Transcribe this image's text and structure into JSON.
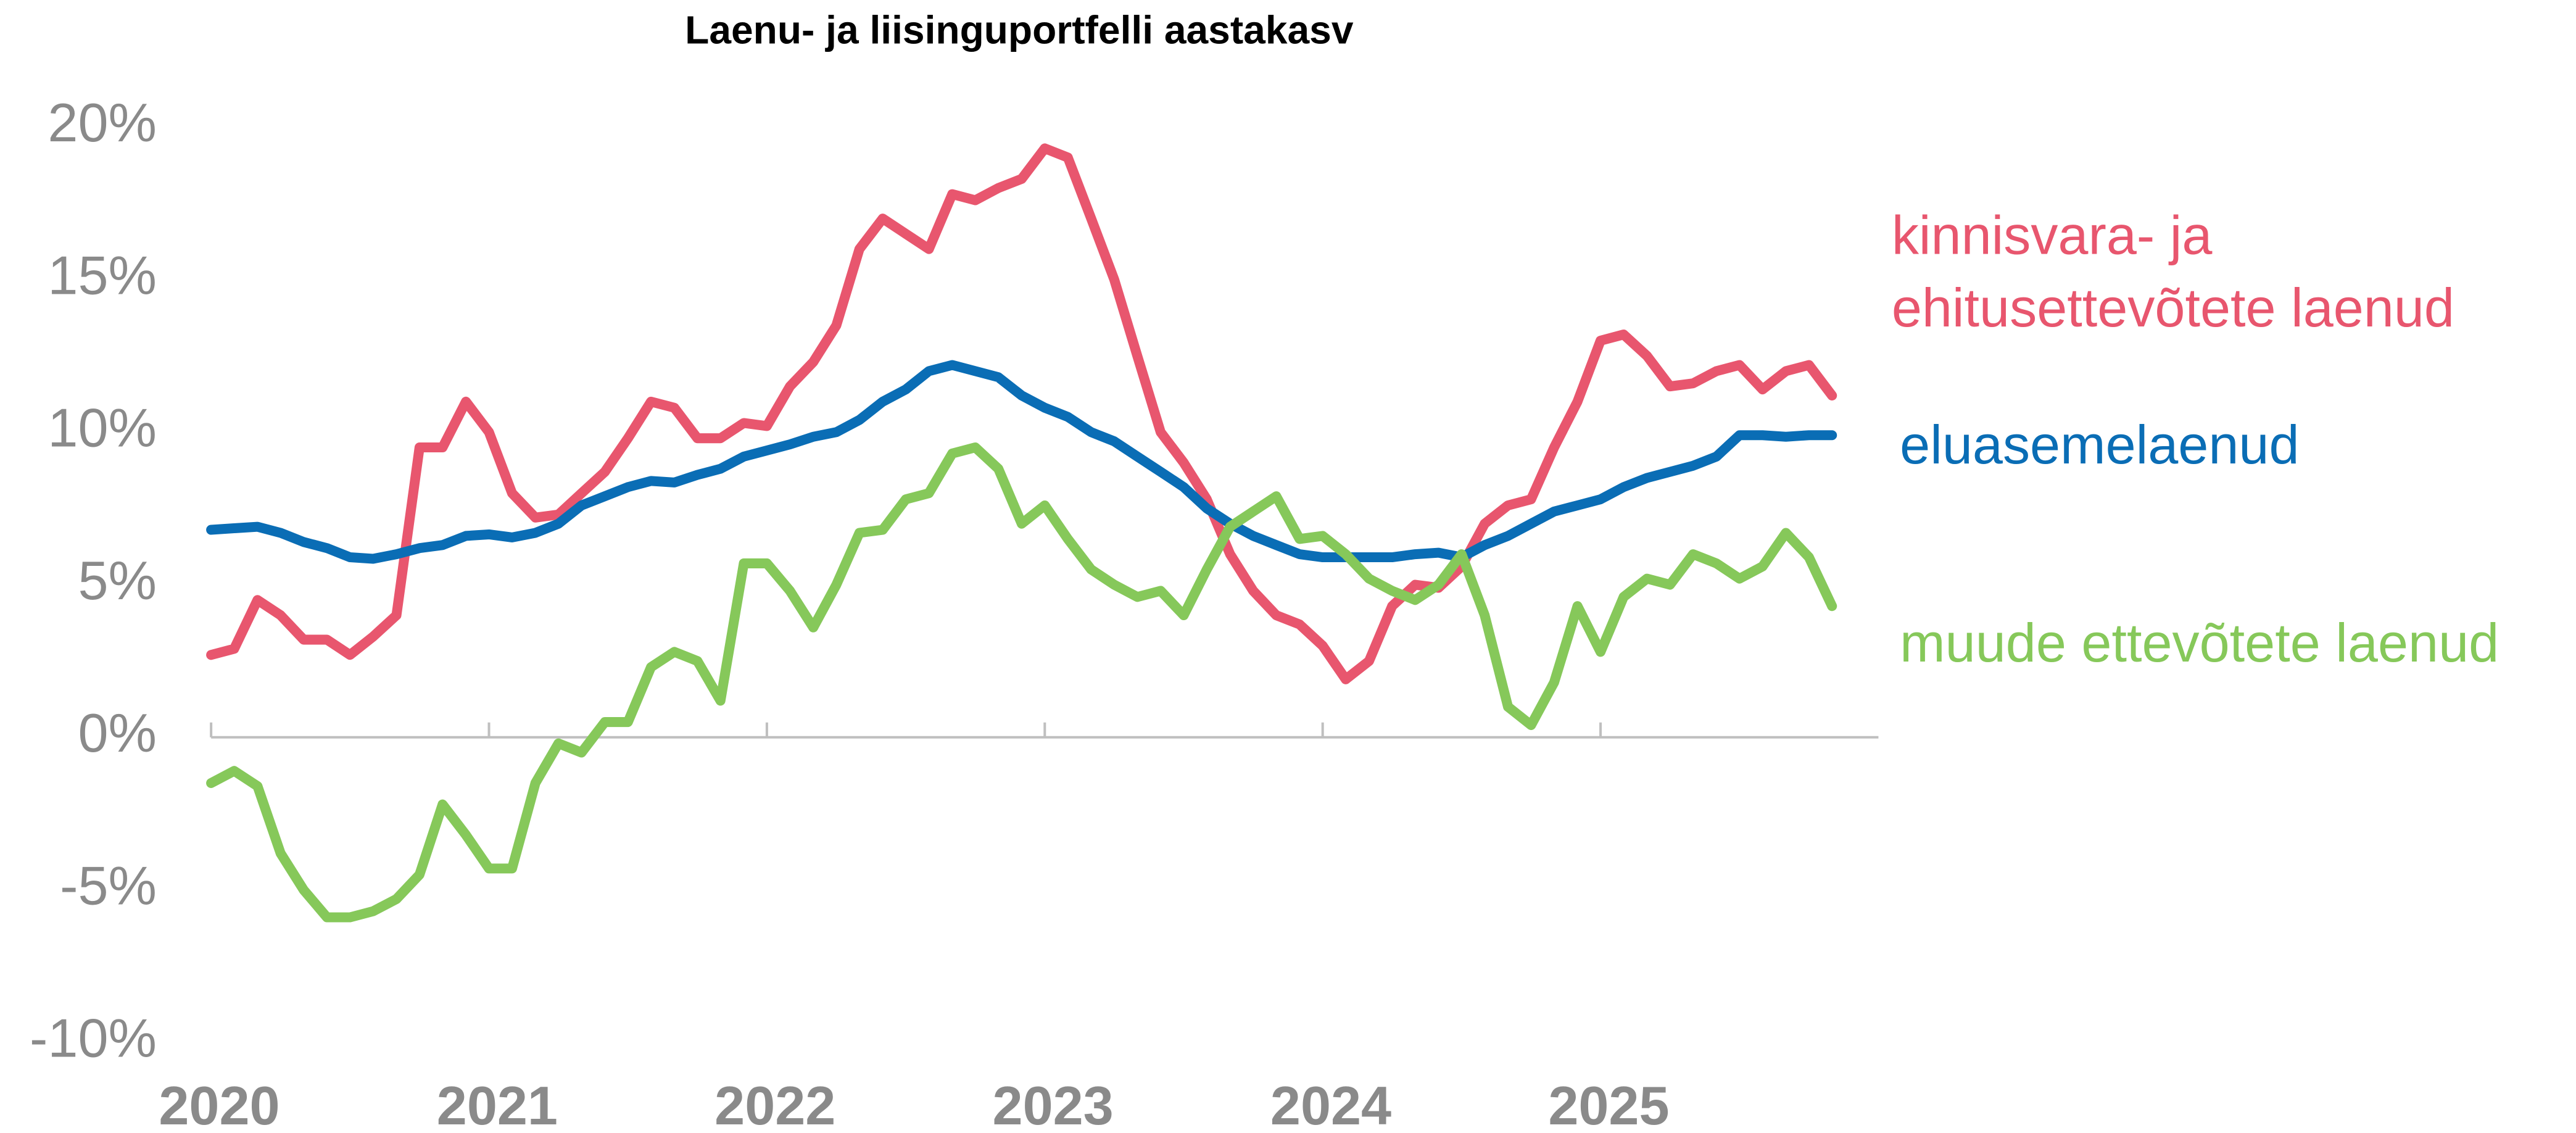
{
  "chart_data": {
    "type": "line",
    "title": "Laenu- ja liisinguportfelli aastakasv",
    "x": [
      2020,
      2020.083,
      2020.167,
      2020.25,
      2020.333,
      2020.417,
      2020.5,
      2020.583,
      2020.667,
      2020.75,
      2020.833,
      2020.917,
      2021,
      2021.083,
      2021.167,
      2021.25,
      2021.333,
      2021.417,
      2021.5,
      2021.583,
      2021.667,
      2021.75,
      2021.833,
      2021.917,
      2022,
      2022.083,
      2022.167,
      2022.25,
      2022.333,
      2022.417,
      2022.5,
      2022.583,
      2022.667,
      2022.75,
      2022.833,
      2022.917,
      2023,
      2023.083,
      2023.167,
      2023.25,
      2023.333,
      2023.417,
      2023.5,
      2023.583,
      2023.667,
      2023.75,
      2023.833,
      2023.917,
      2024,
      2024.083,
      2024.167,
      2024.25,
      2024.333,
      2024.417,
      2024.5,
      2024.583,
      2024.667,
      2024.75,
      2024.833,
      2024.917,
      2025,
      2025.083,
      2025.167,
      2025.25,
      2025.333,
      2025.417,
      2025.5,
      2025.583,
      2025.667,
      2025.75,
      2025.833
    ],
    "series": [
      {
        "name": "kinnisvara- ja ehitusettevõtete laenud",
        "color": "#e8566e",
        "values": [
          2.7,
          2.9,
          4.5,
          4.0,
          3.2,
          3.2,
          2.7,
          3.3,
          4.0,
          9.5,
          9.5,
          11.0,
          10.0,
          8.0,
          7.2,
          7.3,
          8.0,
          8.7,
          9.8,
          11.0,
          10.8,
          9.8,
          9.8,
          10.3,
          10.2,
          11.5,
          12.3,
          13.5,
          16.0,
          17.0,
          16.5,
          16.0,
          17.8,
          17.6,
          18.0,
          18.3,
          19.3,
          19.0,
          17.0,
          15.0,
          12.5,
          10.0,
          9.0,
          7.8,
          6.0,
          4.8,
          4.0,
          3.7,
          3.0,
          1.9,
          2.5,
          4.3,
          5.0,
          4.9,
          5.6,
          7.0,
          7.6,
          7.8,
          9.5,
          11.0,
          13.0,
          13.2,
          12.5,
          11.5,
          11.6,
          12.0,
          12.2,
          11.4,
          12.0,
          12.2,
          11.2
        ]
      },
      {
        "name": "eluasemelaenud",
        "color": "#0a6db5",
        "values": [
          6.8,
          6.85,
          6.9,
          6.7,
          6.4,
          6.2,
          5.9,
          5.85,
          6.0,
          6.2,
          6.3,
          6.6,
          6.65,
          6.55,
          6.7,
          7.0,
          7.6,
          7.9,
          8.2,
          8.4,
          8.35,
          8.6,
          8.8,
          9.2,
          9.4,
          9.6,
          9.85,
          10.0,
          10.4,
          11.0,
          11.4,
          12.0,
          12.2,
          12.0,
          11.8,
          11.2,
          10.8,
          10.5,
          10.0,
          9.7,
          9.2,
          8.7,
          8.2,
          7.5,
          7.0,
          6.6,
          6.3,
          6.0,
          5.9,
          5.9,
          5.9,
          5.9,
          6.0,
          6.05,
          5.9,
          6.3,
          6.6,
          7.0,
          7.4,
          7.6,
          7.8,
          8.2,
          8.5,
          8.7,
          8.9,
          9.2,
          9.9,
          9.9,
          9.85,
          9.9,
          9.9
        ]
      },
      {
        "name": "muude ettevõtete laenud",
        "color": "#86c85a",
        "values": [
          -1.5,
          -1.1,
          -1.6,
          -3.8,
          -5.0,
          -5.9,
          -5.9,
          -5.7,
          -5.3,
          -4.5,
          -2.2,
          -3.2,
          -4.3,
          -4.3,
          -1.5,
          -0.2,
          -0.5,
          0.5,
          0.5,
          2.3,
          2.8,
          2.5,
          1.2,
          5.7,
          5.7,
          4.8,
          3.6,
          5.0,
          6.7,
          6.8,
          7.8,
          8.0,
          9.3,
          9.5,
          8.8,
          7.0,
          7.6,
          6.5,
          5.5,
          5.0,
          4.6,
          4.8,
          4.0,
          5.5,
          6.9,
          7.4,
          7.9,
          6.5,
          6.6,
          6.0,
          5.2,
          4.8,
          4.5,
          5.0,
          6.0,
          4.0,
          1.0,
          0.4,
          1.8,
          4.3,
          2.8,
          4.6,
          5.2,
          5.0,
          6.0,
          5.7,
          5.2,
          5.6,
          6.7,
          5.9,
          4.3
        ]
      }
    ],
    "xlim": [
      2020,
      2026
    ],
    "xticks": [
      2020,
      2021,
      2022,
      2023,
      2024,
      2025
    ],
    "ylim": [
      -10,
      20
    ],
    "yticks": [
      {
        "value": -10,
        "label": "-10%"
      },
      {
        "value": -5,
        "label": "-5%"
      },
      {
        "value": 0,
        "label": "0%"
      },
      {
        "value": 5,
        "label": "5%"
      },
      {
        "value": 10,
        "label": "10%"
      },
      {
        "value": 15,
        "label": "15%"
      },
      {
        "value": 20,
        "label": "20%"
      }
    ],
    "grid": false
  }
}
